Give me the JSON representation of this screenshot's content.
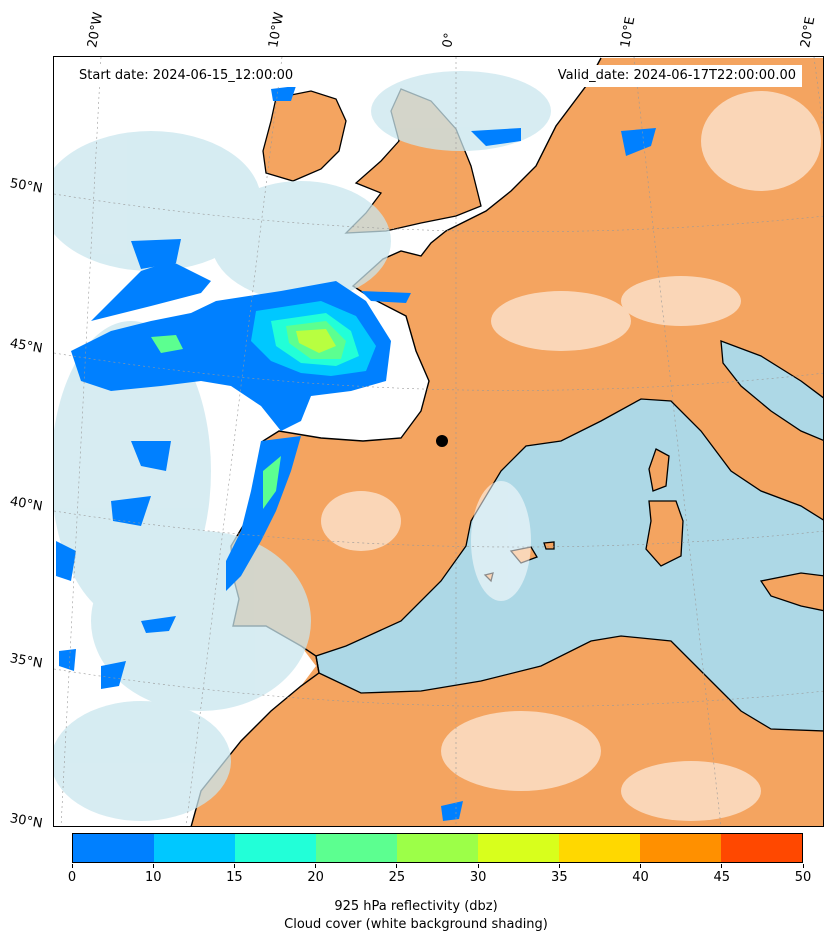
{
  "header": {
    "start_date": "Start date: 2024-06-15_12:00:00",
    "valid_date": "Valid_date: 2024-06-17T22:00:00.00"
  },
  "longitude_labels": [
    "20°W",
    "10°W",
    "0°",
    "10°E",
    "20°E"
  ],
  "latitude_labels": [
    "50°N",
    "45°N",
    "40°N",
    "35°N",
    "30°N"
  ],
  "colors": {
    "land": "#f4a460",
    "sea": "#add8e6",
    "cloud_shade": "#c9e6ee",
    "coastline": "#000000"
  },
  "colorbar": {
    "ticks": [
      "0",
      "10",
      "15",
      "20",
      "25",
      "30",
      "35",
      "40",
      "45",
      "50"
    ],
    "colors": [
      "#0080ff",
      "#00c8ff",
      "#22ffd8",
      "#5cff90",
      "#9cff48",
      "#d8ff1c",
      "#ffd800",
      "#ff9000",
      "#ff4800"
    ],
    "label": "925 hPa reflectivity (dbz)",
    "sublabel": "Cloud cover (white background shading)"
  }
}
